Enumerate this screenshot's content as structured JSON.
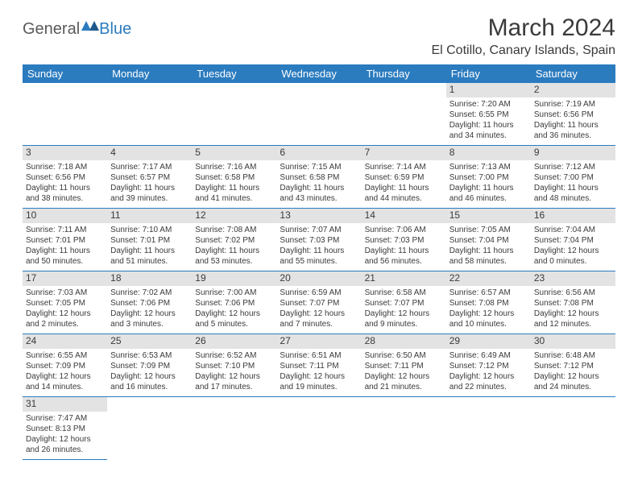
{
  "logo": {
    "text1": "General",
    "text2": "Blue"
  },
  "title": "March 2024",
  "location": "El Cotillo, Canary Islands, Spain",
  "colors": {
    "header_bg": "#2b7bbf",
    "header_fg": "#ffffff",
    "daynum_bg": "#e3e3e3",
    "text": "#3a3a3a",
    "logo_grey": "#5a5a5a",
    "logo_blue": "#2b7bbf",
    "rule": "#2b7bbf"
  },
  "weekdays": [
    "Sunday",
    "Monday",
    "Tuesday",
    "Wednesday",
    "Thursday",
    "Friday",
    "Saturday"
  ],
  "weeks": [
    [
      null,
      null,
      null,
      null,
      null,
      {
        "n": "1",
        "sr": "7:20 AM",
        "ss": "6:55 PM",
        "dl": "11 hours and 34 minutes."
      },
      {
        "n": "2",
        "sr": "7:19 AM",
        "ss": "6:56 PM",
        "dl": "11 hours and 36 minutes."
      }
    ],
    [
      {
        "n": "3",
        "sr": "7:18 AM",
        "ss": "6:56 PM",
        "dl": "11 hours and 38 minutes."
      },
      {
        "n": "4",
        "sr": "7:17 AM",
        "ss": "6:57 PM",
        "dl": "11 hours and 39 minutes."
      },
      {
        "n": "5",
        "sr": "7:16 AM",
        "ss": "6:58 PM",
        "dl": "11 hours and 41 minutes."
      },
      {
        "n": "6",
        "sr": "7:15 AM",
        "ss": "6:58 PM",
        "dl": "11 hours and 43 minutes."
      },
      {
        "n": "7",
        "sr": "7:14 AM",
        "ss": "6:59 PM",
        "dl": "11 hours and 44 minutes."
      },
      {
        "n": "8",
        "sr": "7:13 AM",
        "ss": "7:00 PM",
        "dl": "11 hours and 46 minutes."
      },
      {
        "n": "9",
        "sr": "7:12 AM",
        "ss": "7:00 PM",
        "dl": "11 hours and 48 minutes."
      }
    ],
    [
      {
        "n": "10",
        "sr": "7:11 AM",
        "ss": "7:01 PM",
        "dl": "11 hours and 50 minutes."
      },
      {
        "n": "11",
        "sr": "7:10 AM",
        "ss": "7:01 PM",
        "dl": "11 hours and 51 minutes."
      },
      {
        "n": "12",
        "sr": "7:08 AM",
        "ss": "7:02 PM",
        "dl": "11 hours and 53 minutes."
      },
      {
        "n": "13",
        "sr": "7:07 AM",
        "ss": "7:03 PM",
        "dl": "11 hours and 55 minutes."
      },
      {
        "n": "14",
        "sr": "7:06 AM",
        "ss": "7:03 PM",
        "dl": "11 hours and 56 minutes."
      },
      {
        "n": "15",
        "sr": "7:05 AM",
        "ss": "7:04 PM",
        "dl": "11 hours and 58 minutes."
      },
      {
        "n": "16",
        "sr": "7:04 AM",
        "ss": "7:04 PM",
        "dl": "12 hours and 0 minutes."
      }
    ],
    [
      {
        "n": "17",
        "sr": "7:03 AM",
        "ss": "7:05 PM",
        "dl": "12 hours and 2 minutes."
      },
      {
        "n": "18",
        "sr": "7:02 AM",
        "ss": "7:06 PM",
        "dl": "12 hours and 3 minutes."
      },
      {
        "n": "19",
        "sr": "7:00 AM",
        "ss": "7:06 PM",
        "dl": "12 hours and 5 minutes."
      },
      {
        "n": "20",
        "sr": "6:59 AM",
        "ss": "7:07 PM",
        "dl": "12 hours and 7 minutes."
      },
      {
        "n": "21",
        "sr": "6:58 AM",
        "ss": "7:07 PM",
        "dl": "12 hours and 9 minutes."
      },
      {
        "n": "22",
        "sr": "6:57 AM",
        "ss": "7:08 PM",
        "dl": "12 hours and 10 minutes."
      },
      {
        "n": "23",
        "sr": "6:56 AM",
        "ss": "7:08 PM",
        "dl": "12 hours and 12 minutes."
      }
    ],
    [
      {
        "n": "24",
        "sr": "6:55 AM",
        "ss": "7:09 PM",
        "dl": "12 hours and 14 minutes."
      },
      {
        "n": "25",
        "sr": "6:53 AM",
        "ss": "7:09 PM",
        "dl": "12 hours and 16 minutes."
      },
      {
        "n": "26",
        "sr": "6:52 AM",
        "ss": "7:10 PM",
        "dl": "12 hours and 17 minutes."
      },
      {
        "n": "27",
        "sr": "6:51 AM",
        "ss": "7:11 PM",
        "dl": "12 hours and 19 minutes."
      },
      {
        "n": "28",
        "sr": "6:50 AM",
        "ss": "7:11 PM",
        "dl": "12 hours and 21 minutes."
      },
      {
        "n": "29",
        "sr": "6:49 AM",
        "ss": "7:12 PM",
        "dl": "12 hours and 22 minutes."
      },
      {
        "n": "30",
        "sr": "6:48 AM",
        "ss": "7:12 PM",
        "dl": "12 hours and 24 minutes."
      }
    ],
    [
      {
        "n": "31",
        "sr": "7:47 AM",
        "ss": "8:13 PM",
        "dl": "12 hours and 26 minutes."
      },
      null,
      null,
      null,
      null,
      null,
      null
    ]
  ],
  "labels": {
    "sunrise": "Sunrise:",
    "sunset": "Sunset:",
    "daylight": "Daylight:"
  }
}
